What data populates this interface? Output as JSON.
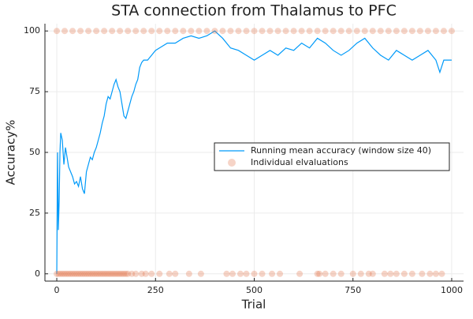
{
  "chart_data": {
    "type": "line",
    "title": "STA connection from Thalamus to PFC",
    "x_label": "Trial",
    "y_label": "Accuracy%",
    "xlim": [
      -30,
      1030
    ],
    "ylim": [
      -3,
      103
    ],
    "xticks": [
      0,
      250,
      500,
      750,
      1000
    ],
    "yticks": [
      0,
      25,
      50,
      75,
      100
    ],
    "grid": true,
    "legend": "right",
    "series": [
      {
        "name": "Running mean accuracy (window size 40)",
        "type": "line",
        "color": "#009af9",
        "x": [
          0,
          2,
          4,
          6,
          8,
          10,
          14,
          18,
          22,
          26,
          30,
          35,
          40,
          45,
          50,
          55,
          60,
          65,
          70,
          75,
          80,
          85,
          90,
          95,
          100,
          105,
          110,
          115,
          120,
          125,
          130,
          135,
          140,
          145,
          150,
          155,
          160,
          165,
          170,
          175,
          180,
          185,
          190,
          195,
          200,
          205,
          210,
          215,
          220,
          230,
          240,
          250,
          260,
          280,
          300,
          320,
          340,
          360,
          380,
          400,
          420,
          440,
          460,
          480,
          500,
          520,
          540,
          560,
          580,
          600,
          620,
          640,
          660,
          680,
          700,
          720,
          740,
          760,
          780,
          800,
          820,
          840,
          860,
          880,
          900,
          920,
          940,
          960,
          970,
          980,
          1000
        ],
        "values": [
          0,
          50,
          18,
          30,
          50,
          58,
          55,
          45,
          52,
          48,
          44,
          42,
          40,
          37,
          38,
          36,
          40,
          35,
          33,
          42,
          45,
          48,
          47,
          50,
          52,
          55,
          58,
          62,
          65,
          70,
          73,
          72,
          75,
          78,
          80,
          77,
          75,
          70,
          65,
          64,
          67,
          70,
          73,
          75,
          78,
          80,
          85,
          87,
          88,
          88,
          90,
          92,
          93,
          95,
          95,
          97,
          98,
          97,
          98,
          100,
          97,
          93,
          92,
          90,
          88,
          90,
          92,
          90,
          93,
          92,
          95,
          93,
          97,
          95,
          92,
          90,
          92,
          95,
          97,
          93,
          90,
          88,
          92,
          90,
          88,
          90,
          92,
          88,
          83,
          88,
          88
        ]
      },
      {
        "name": "Individual elvaluations",
        "type": "scatter",
        "color": "#e26f46",
        "x": [
          0,
          5,
          10,
          15,
          20,
          25,
          30,
          35,
          40,
          45,
          50,
          55,
          60,
          65,
          70,
          75,
          80,
          85,
          90,
          95,
          100,
          105,
          110,
          115,
          120,
          125,
          130,
          135,
          140,
          145,
          150,
          155,
          160,
          165,
          170,
          175,
          180,
          190,
          200,
          215,
          225,
          240,
          260,
          285,
          300,
          335,
          365,
          430,
          445,
          465,
          480,
          500,
          520,
          545,
          565,
          615,
          660,
          665,
          680,
          700,
          720,
          750,
          770,
          790,
          800,
          830,
          845,
          860,
          880,
          900,
          925,
          945,
          960,
          975,
          0,
          20,
          40,
          60,
          80,
          100,
          120,
          140,
          160,
          180,
          200,
          220,
          240,
          260,
          280,
          300,
          320,
          340,
          360,
          380,
          400,
          420,
          440,
          460,
          480,
          500,
          520,
          540,
          560,
          580,
          600,
          620,
          640,
          660,
          680,
          700,
          720,
          740,
          760,
          780,
          800,
          820,
          840,
          860,
          880,
          900,
          920,
          940,
          960,
          980,
          1000
        ],
        "values": [
          0,
          0,
          0,
          0,
          0,
          0,
          0,
          0,
          0,
          0,
          0,
          0,
          0,
          0,
          0,
          0,
          0,
          0,
          0,
          0,
          0,
          0,
          0,
          0,
          0,
          0,
          0,
          0,
          0,
          0,
          0,
          0,
          0,
          0,
          0,
          0,
          0,
          0,
          0,
          0,
          0,
          0,
          0,
          0,
          0,
          0,
          0,
          0,
          0,
          0,
          0,
          0,
          0,
          0,
          0,
          0,
          0,
          0,
          0,
          0,
          0,
          0,
          0,
          0,
          0,
          0,
          0,
          0,
          0,
          0,
          0,
          0,
          0,
          0,
          100,
          100,
          100,
          100,
          100,
          100,
          100,
          100,
          100,
          100,
          100,
          100,
          100,
          100,
          100,
          100,
          100,
          100,
          100,
          100,
          100,
          100,
          100,
          100,
          100,
          100,
          100,
          100,
          100,
          100,
          100,
          100,
          100,
          100,
          100,
          100,
          100,
          100,
          100,
          100,
          100,
          100,
          100,
          100,
          100,
          100,
          100,
          100,
          100,
          100,
          100
        ]
      }
    ]
  }
}
